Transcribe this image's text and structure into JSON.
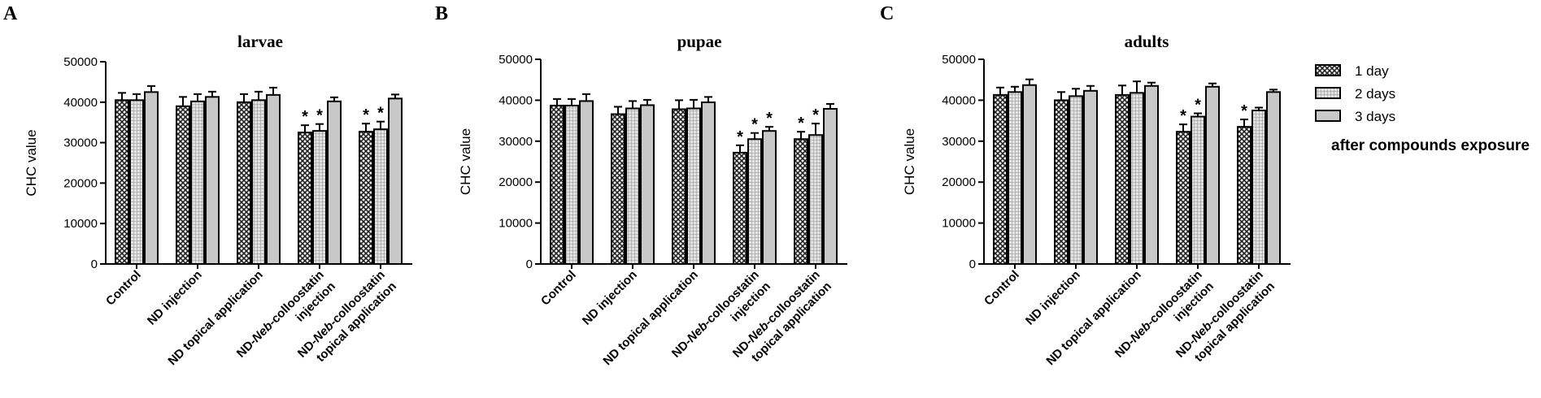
{
  "chart_data": [
    {
      "type": "bar",
      "panel": "A",
      "title": "larvae",
      "ylabel": "CHC value",
      "ylim": [
        0,
        50000
      ],
      "yticks": [
        "0",
        "10000",
        "20000",
        "30000",
        "40000",
        "50000"
      ],
      "categories": [
        [
          "Control"
        ],
        [
          "ND injection"
        ],
        [
          "ND topical application"
        ],
        [
          "ND-",
          "Neb",
          "-colloostatin",
          "injection"
        ],
        [
          "ND-",
          "Neb",
          "-colloostatin",
          "topical application"
        ]
      ],
      "series": [
        {
          "name": "1 day",
          "values": [
            40500,
            39000,
            40000,
            32500,
            32700
          ],
          "errors": [
            1800,
            2300,
            2000,
            1800,
            2000
          ],
          "significant": [
            false,
            false,
            false,
            true,
            true
          ]
        },
        {
          "name": "2 days",
          "values": [
            40500,
            40200,
            40500,
            32900,
            33300
          ],
          "errors": [
            1500,
            1800,
            2100,
            1700,
            1900
          ],
          "significant": [
            false,
            false,
            false,
            true,
            true
          ]
        },
        {
          "name": "3 days",
          "values": [
            42500,
            41300,
            41800,
            40200,
            40900
          ],
          "errors": [
            1500,
            1300,
            1800,
            1000,
            1000
          ],
          "significant": [
            false,
            false,
            false,
            false,
            false
          ]
        }
      ]
    },
    {
      "type": "bar",
      "panel": "B",
      "title": "pupae",
      "ylabel": "CHC value",
      "ylim": [
        0,
        50000
      ],
      "yticks": [
        "0",
        "10000",
        "20000",
        "30000",
        "40000",
        "50000"
      ],
      "categories": [
        [
          "Control"
        ],
        [
          "ND injection"
        ],
        [
          "ND topical application"
        ],
        [
          "ND-",
          "Neb",
          "-colloostatin",
          "injection"
        ],
        [
          "ND-",
          "Neb",
          "-colloostatin",
          "topical application"
        ]
      ],
      "series": [
        {
          "name": "1 day",
          "values": [
            38700,
            36600,
            37800,
            27200,
            30500
          ],
          "errors": [
            1600,
            1800,
            2200,
            1800,
            1800
          ],
          "significant": [
            false,
            false,
            false,
            true,
            true
          ]
        },
        {
          "name": "2 days",
          "values": [
            38700,
            38000,
            38000,
            30500,
            31500
          ],
          "errors": [
            1600,
            1800,
            2100,
            1500,
            2800
          ],
          "significant": [
            false,
            false,
            false,
            true,
            true
          ]
        },
        {
          "name": "3 days",
          "values": [
            39800,
            38800,
            39500,
            32500,
            37900
          ],
          "errors": [
            1700,
            1300,
            1300,
            1000,
            1200
          ],
          "significant": [
            false,
            false,
            false,
            true,
            false
          ]
        }
      ]
    },
    {
      "type": "bar",
      "panel": "C",
      "title": "adults",
      "ylabel": "CHC value",
      "ylim": [
        0,
        50000
      ],
      "yticks": [
        "0",
        "10000",
        "20000",
        "30000",
        "40000",
        "50000"
      ],
      "categories": [
        [
          "Control"
        ],
        [
          "ND injection"
        ],
        [
          "ND topical application"
        ],
        [
          "ND-",
          "Neb",
          "-colloostatin",
          "injection"
        ],
        [
          "ND-",
          "Neb",
          "-colloostatin",
          "topical application"
        ]
      ],
      "series": [
        {
          "name": "1 day",
          "values": [
            41300,
            40000,
            41300,
            32300,
            33500
          ],
          "errors": [
            1800,
            2000,
            2300,
            1800,
            1800
          ],
          "significant": [
            false,
            false,
            false,
            true,
            true
          ]
        },
        {
          "name": "2 days",
          "values": [
            42000,
            41000,
            41800,
            36000,
            37500
          ],
          "errors": [
            1300,
            1800,
            2800,
            800,
            700
          ],
          "significant": [
            false,
            false,
            false,
            true,
            false
          ]
        },
        {
          "name": "3 days",
          "values": [
            43700,
            42300,
            43500,
            43300,
            42000
          ],
          "errors": [
            1400,
            1200,
            800,
            800,
            600
          ],
          "significant": [
            false,
            false,
            false,
            false,
            false
          ]
        }
      ]
    }
  ],
  "legend": {
    "entries": [
      {
        "label": "1 day",
        "pattern": "crosshatch"
      },
      {
        "label": "2 days",
        "pattern": "grid"
      },
      {
        "label": "3 days",
        "pattern": "solid-grey"
      }
    ],
    "note": "after compounds exposure",
    "placement": "right"
  },
  "colors": {
    "ink": "#000000",
    "bar_fill_solid": "#c8c8c8",
    "bar_fill_grid": "#d4d4d4",
    "bar_fill_cross": "#8a8a8a"
  }
}
